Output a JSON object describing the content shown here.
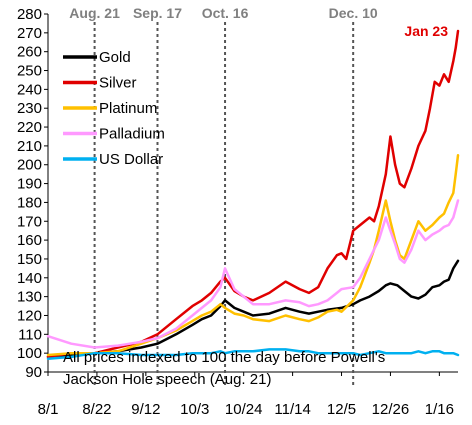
{
  "chart_data": {
    "type": "line",
    "title": "",
    "xlabel": "",
    "ylabel": "",
    "ylim": [
      90,
      280
    ],
    "y_ticks": [
      90,
      100,
      110,
      120,
      130,
      140,
      150,
      160,
      170,
      180,
      190,
      200,
      210,
      220,
      230,
      240,
      250,
      260,
      270,
      280
    ],
    "x_tick_labels": [
      "8/1",
      "8/22",
      "9/12",
      "10/3",
      "10/24",
      "11/14",
      "12/5",
      "12/26",
      "1/16"
    ],
    "x_tick_days": [
      0,
      21,
      42,
      63,
      84,
      105,
      126,
      147,
      168
    ],
    "x_range_days": [
      0,
      176
    ],
    "grid": false,
    "legend_position": "top-left",
    "vertical_markers": [
      {
        "label": "Aug. 21",
        "day": 20
      },
      {
        "label": "Sep. 17",
        "day": 47
      },
      {
        "label": "Oct. 16",
        "day": 76
      },
      {
        "label": "Dec. 10",
        "day": 131
      }
    ],
    "end_label": "Jan 23",
    "annotation_lines": [
      "All prices indexed to 100 the day before Powell's",
      "Jackson Hole speech (Aug. 21)"
    ],
    "series": [
      {
        "name": "Gold",
        "color": "#000000",
        "points": [
          [
            0,
            98
          ],
          [
            10,
            99
          ],
          [
            20,
            100
          ],
          [
            30,
            101
          ],
          [
            40,
            103
          ],
          [
            47,
            105
          ],
          [
            55,
            110
          ],
          [
            62,
            115
          ],
          [
            66,
            118
          ],
          [
            70,
            120
          ],
          [
            74,
            125
          ],
          [
            76,
            128
          ],
          [
            80,
            124
          ],
          [
            84,
            122
          ],
          [
            88,
            120
          ],
          [
            95,
            121
          ],
          [
            102,
            124
          ],
          [
            108,
            122
          ],
          [
            112,
            121
          ],
          [
            116,
            122
          ],
          [
            120,
            123
          ],
          [
            126,
            124
          ],
          [
            131,
            126
          ],
          [
            134,
            128
          ],
          [
            138,
            130
          ],
          [
            142,
            133
          ],
          [
            145,
            136
          ],
          [
            147,
            137
          ],
          [
            150,
            136
          ],
          [
            153,
            133
          ],
          [
            156,
            130
          ],
          [
            159,
            129
          ],
          [
            162,
            131
          ],
          [
            165,
            135
          ],
          [
            168,
            136
          ],
          [
            170,
            138
          ],
          [
            172,
            139
          ],
          [
            174,
            145
          ],
          [
            176,
            149
          ]
        ]
      },
      {
        "name": "Silver",
        "color": "#e00000",
        "points": [
          [
            0,
            98
          ],
          [
            10,
            100
          ],
          [
            20,
            100
          ],
          [
            30,
            103
          ],
          [
            40,
            106
          ],
          [
            47,
            110
          ],
          [
            55,
            118
          ],
          [
            62,
            125
          ],
          [
            66,
            128
          ],
          [
            70,
            132
          ],
          [
            74,
            138
          ],
          [
            76,
            140
          ],
          [
            80,
            133
          ],
          [
            84,
            130
          ],
          [
            88,
            128
          ],
          [
            95,
            132
          ],
          [
            102,
            138
          ],
          [
            108,
            134
          ],
          [
            112,
            132
          ],
          [
            116,
            135
          ],
          [
            120,
            145
          ],
          [
            124,
            152
          ],
          [
            126,
            153
          ],
          [
            128,
            150
          ],
          [
            131,
            165
          ],
          [
            134,
            168
          ],
          [
            138,
            172
          ],
          [
            140,
            170
          ],
          [
            142,
            178
          ],
          [
            145,
            195
          ],
          [
            147,
            215
          ],
          [
            149,
            200
          ],
          [
            151,
            190
          ],
          [
            153,
            188
          ],
          [
            156,
            198
          ],
          [
            159,
            210
          ],
          [
            162,
            218
          ],
          [
            164,
            230
          ],
          [
            166,
            244
          ],
          [
            168,
            242
          ],
          [
            170,
            248
          ],
          [
            172,
            244
          ],
          [
            174,
            255
          ],
          [
            175,
            262
          ],
          [
            176,
            271
          ]
        ]
      },
      {
        "name": "Platinum",
        "color": "#ffc000",
        "points": [
          [
            0,
            99
          ],
          [
            10,
            100
          ],
          [
            20,
            100
          ],
          [
            30,
            101
          ],
          [
            40,
            105
          ],
          [
            47,
            108
          ],
          [
            55,
            112
          ],
          [
            62,
            117
          ],
          [
            66,
            120
          ],
          [
            70,
            122
          ],
          [
            74,
            126
          ],
          [
            76,
            124
          ],
          [
            80,
            121
          ],
          [
            84,
            120
          ],
          [
            88,
            118
          ],
          [
            95,
            117
          ],
          [
            102,
            120
          ],
          [
            108,
            118
          ],
          [
            112,
            117
          ],
          [
            116,
            119
          ],
          [
            120,
            122
          ],
          [
            124,
            123
          ],
          [
            126,
            122
          ],
          [
            131,
            128
          ],
          [
            134,
            135
          ],
          [
            138,
            148
          ],
          [
            140,
            155
          ],
          [
            142,
            165
          ],
          [
            145,
            181
          ],
          [
            147,
            170
          ],
          [
            149,
            160
          ],
          [
            151,
            152
          ],
          [
            153,
            150
          ],
          [
            156,
            160
          ],
          [
            159,
            170
          ],
          [
            162,
            165
          ],
          [
            165,
            168
          ],
          [
            168,
            172
          ],
          [
            170,
            174
          ],
          [
            172,
            180
          ],
          [
            174,
            185
          ],
          [
            175,
            195
          ],
          [
            176,
            205
          ]
        ]
      },
      {
        "name": "Palladium",
        "color": "#ff99ff",
        "points": [
          [
            0,
            109
          ],
          [
            10,
            105
          ],
          [
            20,
            103
          ],
          [
            30,
            104
          ],
          [
            40,
            106
          ],
          [
            47,
            108
          ],
          [
            55,
            113
          ],
          [
            62,
            120
          ],
          [
            66,
            124
          ],
          [
            70,
            128
          ],
          [
            74,
            135
          ],
          [
            76,
            145
          ],
          [
            80,
            134
          ],
          [
            84,
            130
          ],
          [
            88,
            126
          ],
          [
            95,
            126
          ],
          [
            102,
            128
          ],
          [
            108,
            127
          ],
          [
            112,
            125
          ],
          [
            116,
            126
          ],
          [
            120,
            128
          ],
          [
            124,
            132
          ],
          [
            126,
            134
          ],
          [
            131,
            135
          ],
          [
            134,
            140
          ],
          [
            138,
            150
          ],
          [
            140,
            155
          ],
          [
            142,
            160
          ],
          [
            145,
            172
          ],
          [
            147,
            165
          ],
          [
            149,
            158
          ],
          [
            151,
            150
          ],
          [
            153,
            148
          ],
          [
            156,
            155
          ],
          [
            159,
            165
          ],
          [
            162,
            160
          ],
          [
            165,
            163
          ],
          [
            168,
            165
          ],
          [
            170,
            167
          ],
          [
            172,
            168
          ],
          [
            174,
            172
          ],
          [
            176,
            181
          ]
        ]
      },
      {
        "name": "US Dollar",
        "color": "#00b0f0",
        "points": [
          [
            0,
            97
          ],
          [
            10,
            98
          ],
          [
            20,
            100
          ],
          [
            30,
            100
          ],
          [
            40,
            99
          ],
          [
            47,
            99
          ],
          [
            55,
            99
          ],
          [
            62,
            100
          ],
          [
            66,
            100
          ],
          [
            70,
            100
          ],
          [
            74,
            101
          ],
          [
            76,
            100
          ],
          [
            80,
            101
          ],
          [
            84,
            101
          ],
          [
            88,
            101
          ],
          [
            95,
            102
          ],
          [
            102,
            102
          ],
          [
            108,
            101
          ],
          [
            112,
            101
          ],
          [
            116,
            100
          ],
          [
            120,
            100
          ],
          [
            126,
            100
          ],
          [
            131,
            100
          ],
          [
            134,
            99
          ],
          [
            138,
            100
          ],
          [
            142,
            101
          ],
          [
            145,
            100
          ],
          [
            147,
            100
          ],
          [
            150,
            100
          ],
          [
            153,
            100
          ],
          [
            156,
            100
          ],
          [
            159,
            101
          ],
          [
            162,
            100
          ],
          [
            165,
            101
          ],
          [
            168,
            101
          ],
          [
            170,
            100
          ],
          [
            172,
            100
          ],
          [
            174,
            100
          ],
          [
            176,
            99
          ]
        ]
      }
    ]
  }
}
